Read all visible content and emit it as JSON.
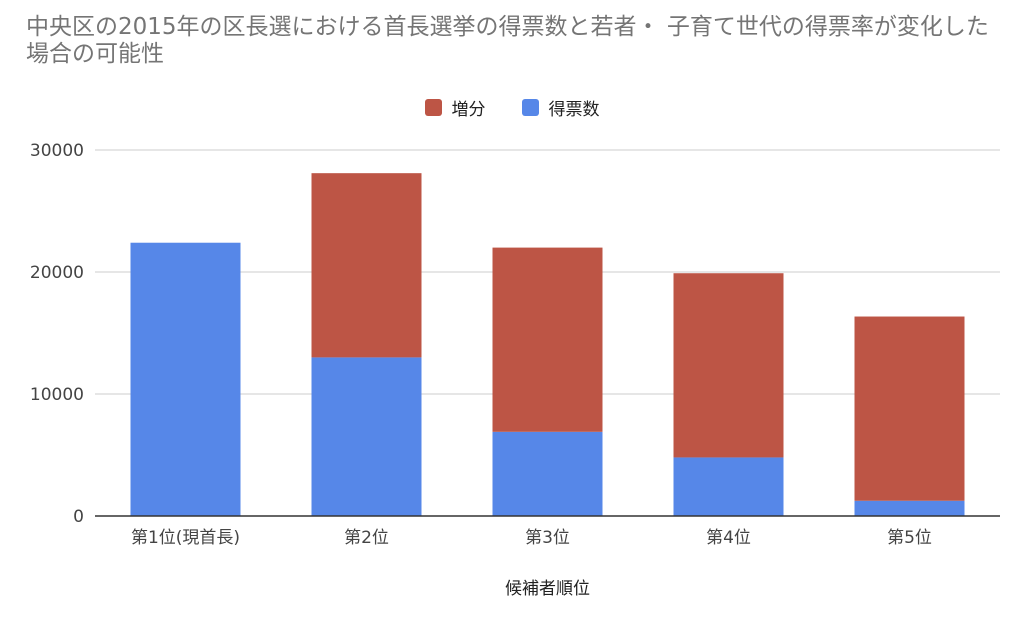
{
  "chart_data": {
    "type": "bar",
    "stacked": true,
    "title": "中央区の2015年の区長選における首長選挙の得票数と若者・ 子育て世代の得票率が変化した場合の可能性",
    "xlabel": "候補者順位",
    "ylabel": "",
    "categories": [
      "第1位(現首長)",
      "第2位",
      "第3位",
      "第4位",
      "第5位"
    ],
    "series": [
      {
        "name": "得票数",
        "color": "#5687e8",
        "values": [
          22400,
          13000,
          6900,
          4800,
          1250
        ]
      },
      {
        "name": "増分",
        "color": "#bd5545",
        "values": [
          0,
          15100,
          15100,
          15100,
          15100
        ]
      }
    ],
    "ylim": [
      0,
      30000
    ],
    "yticks": [
      0,
      10000,
      20000,
      30000
    ],
    "grid": true,
    "legend_position": "top",
    "legend_order": [
      "増分",
      "得票数"
    ]
  }
}
